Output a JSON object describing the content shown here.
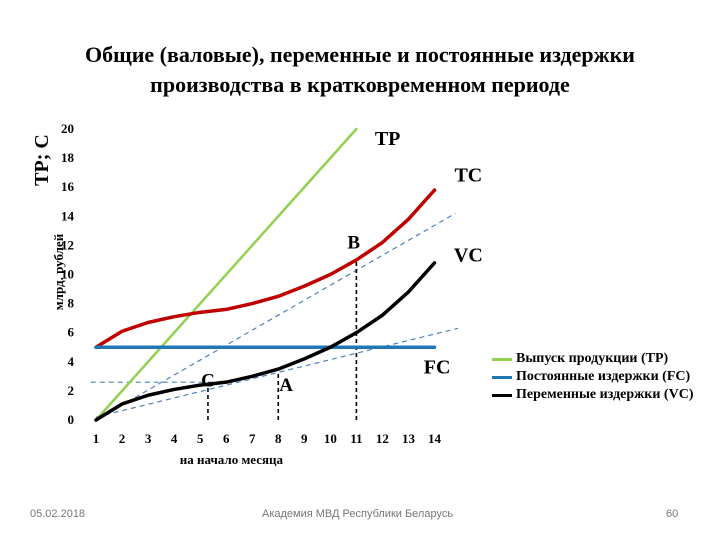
{
  "title": {
    "line1": "Общие (валовые), переменные и постоянные издержки",
    "line2": "производства в кратковременном периоде"
  },
  "chart_data": {
    "type": "line",
    "ylabel_main": "TP; C",
    "ylabel_sub": "млрд. рублей",
    "xlabel": "на начало месяца",
    "xlim": [
      1,
      14
    ],
    "ylim": [
      0,
      20
    ],
    "x_ticks": [
      1,
      2,
      3,
      4,
      5,
      6,
      7,
      8,
      9,
      10,
      11,
      12,
      13,
      14
    ],
    "y_ticks": [
      0,
      2,
      4,
      6,
      8,
      10,
      12,
      14,
      16,
      18,
      20
    ],
    "series": [
      {
        "name": "TP",
        "color": "#92d050",
        "x": [
          1,
          11
        ],
        "y": [
          0,
          20
        ]
      },
      {
        "name": "TC",
        "color": "#c00000",
        "x": [
          1,
          2,
          3,
          4,
          5,
          6,
          7,
          8,
          9,
          10,
          11,
          12,
          13,
          14
        ],
        "y": [
          5,
          6.1,
          6.7,
          7.1,
          7.4,
          7.6,
          8.0,
          8.5,
          9.2,
          10.0,
          11.0,
          12.2,
          13.8,
          15.8
        ]
      },
      {
        "name": "FC",
        "color": "#1f77b4",
        "x": [
          1,
          14
        ],
        "y": [
          5,
          5
        ]
      },
      {
        "name": "VC",
        "color": "#000000",
        "x": [
          1,
          2,
          3,
          4,
          5,
          6,
          7,
          8,
          9,
          10,
          11,
          12,
          13,
          14
        ],
        "y": [
          0,
          1.1,
          1.7,
          2.1,
          2.4,
          2.6,
          3.0,
          3.5,
          4.2,
          5.0,
          6.0,
          7.2,
          8.8,
          10.8
        ]
      }
    ],
    "annotations": [
      {
        "text": "TP",
        "x": 12.2,
        "y": 18.9
      },
      {
        "text": "TC",
        "x": 15.3,
        "y": 16.4
      },
      {
        "text": "VC",
        "x": 15.3,
        "y": 10.9
      },
      {
        "text": "FC",
        "x": 14.1,
        "y": 3.2
      },
      {
        "text": "B",
        "x": 10.9,
        "y": 11.8
      },
      {
        "text": "C",
        "x": 5.3,
        "y": 2.3
      },
      {
        "text": "A",
        "x": 8.3,
        "y": 2.0
      }
    ],
    "guides": [
      {
        "kind": "dashed-blue",
        "x": [
          1,
          14.8
        ],
        "y": [
          0,
          14.2
        ]
      },
      {
        "kind": "dashed-blue",
        "x": [
          1,
          14.9
        ],
        "y": [
          0.2,
          6.3
        ]
      },
      {
        "kind": "dashed-blue",
        "x": [
          0.8,
          5.5
        ],
        "y": [
          2.6,
          2.6
        ]
      },
      {
        "kind": "dashed-black",
        "x": [
          5.3,
          5.3
        ],
        "y": [
          0,
          2.5
        ]
      },
      {
        "kind": "dashed-black",
        "x": [
          8.0,
          8.0
        ],
        "y": [
          0,
          3.3
        ]
      },
      {
        "kind": "dashed-black",
        "x": [
          11.0,
          11.0
        ],
        "y": [
          0,
          11.0
        ]
      }
    ],
    "legend": {
      "position": "right",
      "items": [
        {
          "label": "Выпуск продукции (TP)",
          "color": "#92d050"
        },
        {
          "label": "Постоянные издержки (FC)",
          "color": "#1f77b4"
        },
        {
          "label": "Переменные издержки (VC)",
          "color": "#000000"
        }
      ]
    }
  },
  "footer": {
    "date": "05.02.2018",
    "org": "Академия МВД Республики Беларусь",
    "page": "60"
  }
}
